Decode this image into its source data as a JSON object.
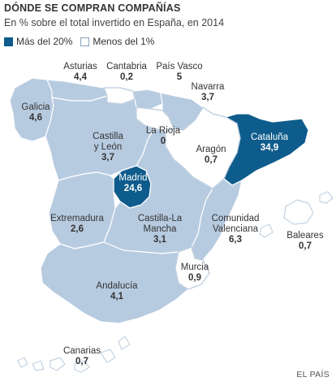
{
  "title": "DÓNDE SE COMPRAN COMPAÑÍAS",
  "subtitle": "En % sobre el total invertido en España, en 2014",
  "legend": [
    {
      "label": "Más del 20%",
      "color": "#0e5c8c"
    },
    {
      "label": "Menos del 1%",
      "color": "#ffffff"
    }
  ],
  "colors": {
    "high": "#0e5c8c",
    "mid": "#b7cbe0",
    "low": "#ffffff",
    "border": "#ffffff",
    "outline": "#c5d3e2"
  },
  "regions": [
    {
      "name": "Asturias",
      "value": "4,4",
      "category": "mid"
    },
    {
      "name": "Cantabria",
      "value": "0,2",
      "category": "low"
    },
    {
      "name": "País Vasco",
      "value": "5",
      "category": "mid"
    },
    {
      "name": "Navarra",
      "value": "3,7",
      "category": "mid"
    },
    {
      "name": "Galicia",
      "value": "4,6",
      "category": "mid"
    },
    {
      "name": "La Rioja",
      "value": "0",
      "category": "low"
    },
    {
      "name": "Castilla y León",
      "value": "3,7",
      "category": "mid"
    },
    {
      "name": "Aragón",
      "value": "0,7",
      "category": "low"
    },
    {
      "name": "Cataluña",
      "value": "34,9",
      "category": "high"
    },
    {
      "name": "Madrid",
      "value": "24,6",
      "category": "high"
    },
    {
      "name": "Extremadura",
      "value": "2,6",
      "category": "mid"
    },
    {
      "name": "Castilla-La Mancha",
      "value": "3,1",
      "category": "mid"
    },
    {
      "name": "Comunidad Valenciana",
      "value": "6,3",
      "category": "mid"
    },
    {
      "name": "Baleares",
      "value": "0,7",
      "category": "low"
    },
    {
      "name": "Murcia",
      "value": "0,9",
      "category": "low"
    },
    {
      "name": "Andalucía",
      "value": "4,1",
      "category": "mid"
    },
    {
      "name": "Canarias",
      "value": "0,7",
      "category": "low"
    }
  ],
  "label_lines": {
    "castilla_leon": [
      "Castilla",
      "y León"
    ],
    "castilla_mancha": [
      "Castilla-La",
      "Mancha"
    ],
    "valenciana": [
      "Comunidad",
      "Valenciana"
    ]
  },
  "source": "EL PAÍS"
}
